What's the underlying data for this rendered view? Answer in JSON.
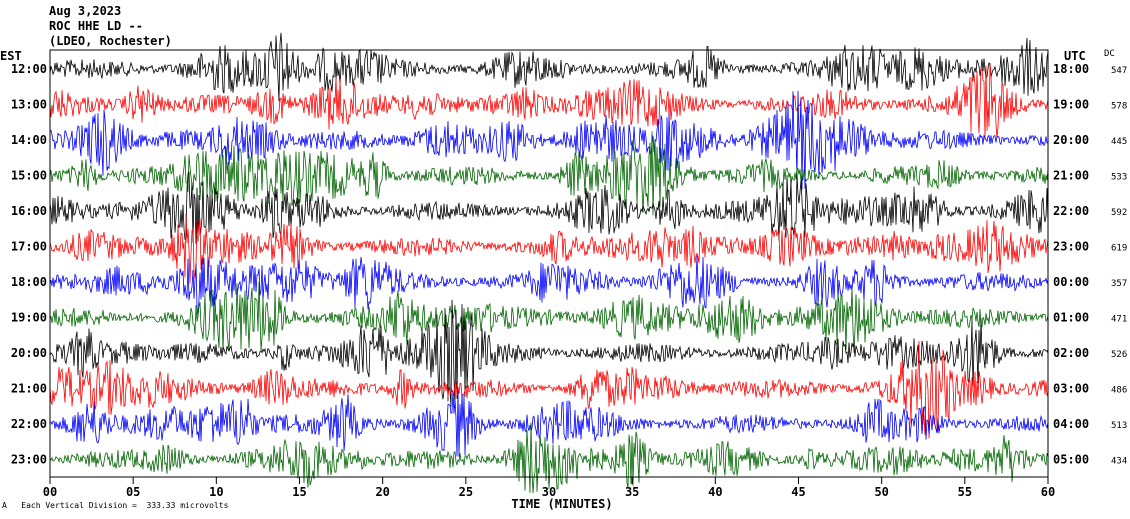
{
  "header": {
    "date": "Aug 3,2023",
    "station": "ROC HHE LD --",
    "location": "(LDEO, Rochester)"
  },
  "left_axis_label": "EST",
  "right_axis_label": "UTC",
  "dc_label": "DC",
  "footer": "Each Vertical Division =  333.33 microvolts",
  "footer_mark": "A",
  "colors": {
    "trace_cycle": [
      "#000000",
      "#ff0000",
      "#0000ff",
      "#006600"
    ]
  },
  "chart_data": {
    "type": "line",
    "xlabel": "TIME (MINUTES)",
    "xlim": [
      0,
      60
    ],
    "x_ticks": [
      "00",
      "05",
      "10",
      "15",
      "20",
      "25",
      "30",
      "35",
      "40",
      "45",
      "50",
      "55",
      "60"
    ],
    "rows": [
      {
        "est": "12:00",
        "utc": "18:00",
        "dc": "547",
        "color": "#000000"
      },
      {
        "est": "13:00",
        "utc": "19:00",
        "dc": "578",
        "color": "#ff0000"
      },
      {
        "est": "14:00",
        "utc": "20:00",
        "dc": "445",
        "color": "#0000ff"
      },
      {
        "est": "15:00",
        "utc": "21:00",
        "dc": "533",
        "color": "#006600"
      },
      {
        "est": "16:00",
        "utc": "22:00",
        "dc": "592",
        "color": "#000000"
      },
      {
        "est": "17:00",
        "utc": "23:00",
        "dc": "619",
        "color": "#ff0000"
      },
      {
        "est": "18:00",
        "utc": "00:00",
        "dc": "357",
        "color": "#0000ff"
      },
      {
        "est": "19:00",
        "utc": "01:00",
        "dc": "471",
        "color": "#006600"
      },
      {
        "est": "20:00",
        "utc": "02:00",
        "dc": "526",
        "color": "#000000"
      },
      {
        "est": "21:00",
        "utc": "03:00",
        "dc": "486",
        "color": "#ff0000"
      },
      {
        "est": "22:00",
        "utc": "04:00",
        "dc": "513",
        "color": "#0000ff"
      },
      {
        "est": "23:00",
        "utc": "05:00",
        "dc": "434",
        "color": "#006600"
      }
    ]
  }
}
